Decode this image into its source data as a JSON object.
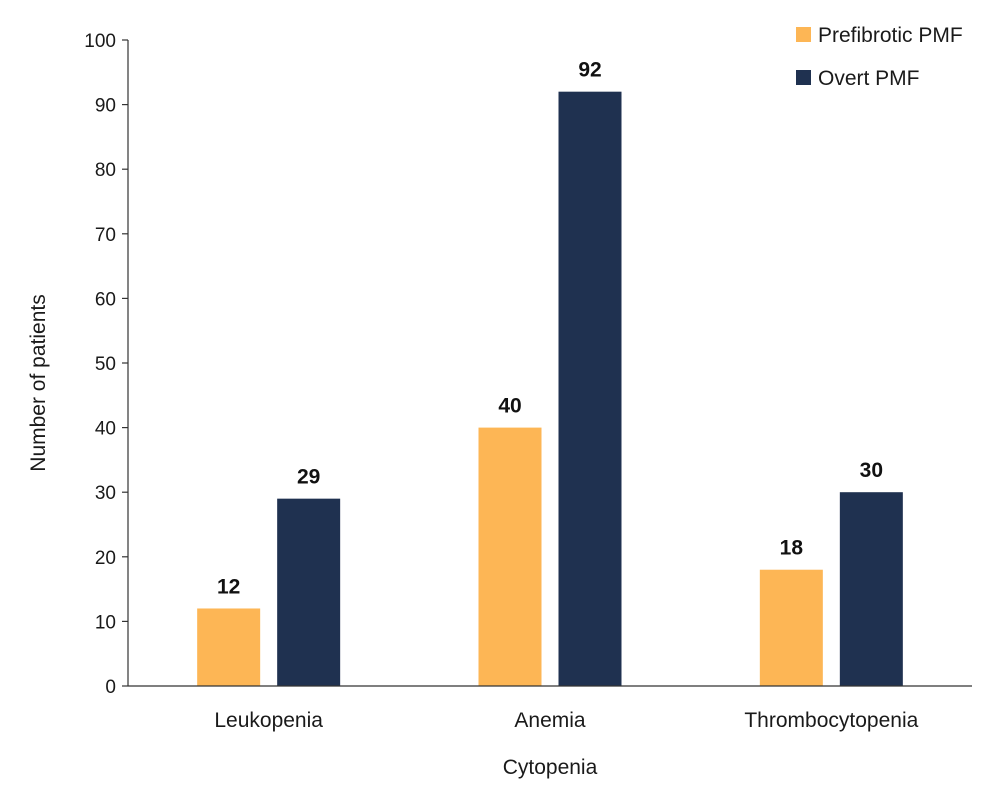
{
  "chart_data": {
    "type": "bar",
    "title": "",
    "xlabel": "Cytopenia",
    "ylabel": "Number of patients",
    "ylim": [
      0,
      100
    ],
    "yticks": [
      0,
      10,
      20,
      30,
      40,
      50,
      60,
      70,
      80,
      90,
      100
    ],
    "grid": false,
    "legend_position": "top-right",
    "categories": [
      "Leukopenia",
      "Anemia",
      "Thrombocytopenia"
    ],
    "series": [
      {
        "name": "Prefibrotic PMF",
        "color": "#FDB655",
        "values": [
          12,
          40,
          18
        ]
      },
      {
        "name": "Overt PMF",
        "color": "#1F3150",
        "values": [
          29,
          92,
          30
        ]
      }
    ]
  }
}
